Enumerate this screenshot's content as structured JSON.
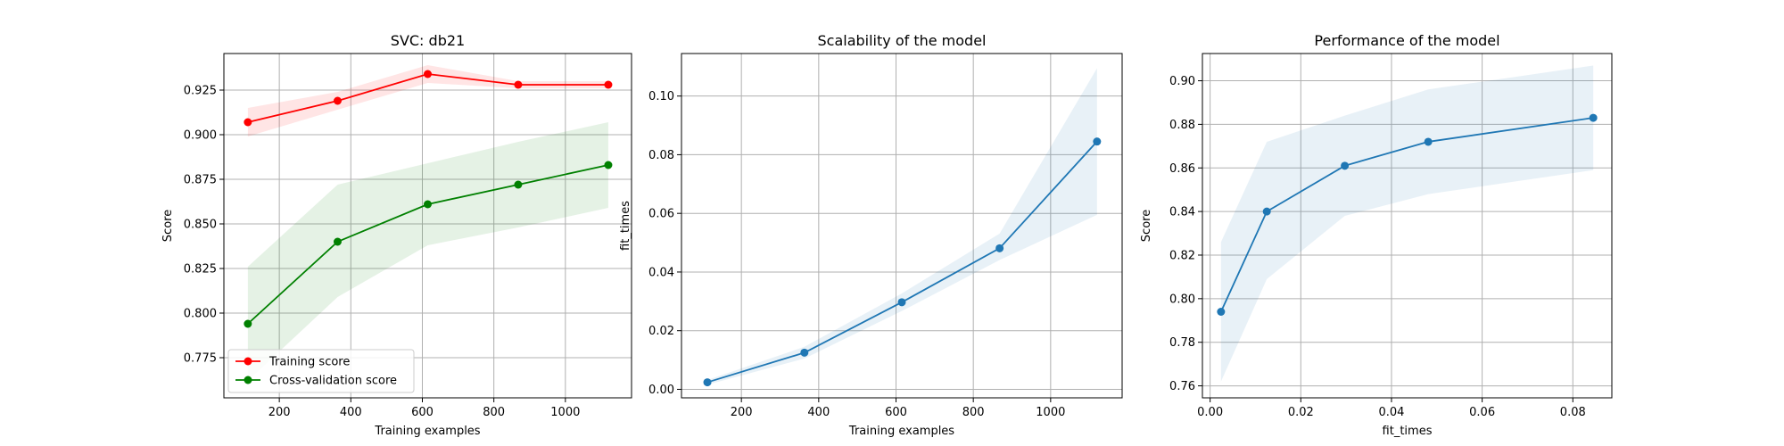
{
  "chart_data": [
    {
      "type": "line",
      "title": "SVC: db21",
      "xlabel": "Training examples",
      "ylabel": "Score",
      "xlim": [
        45,
        1185
      ],
      "ylim": [
        0.7525,
        0.9455
      ],
      "xticks": [
        200,
        400,
        600,
        800,
        1000
      ],
      "xtick_labels": [
        "200",
        "400",
        "600",
        "800",
        "1000"
      ],
      "yticks": [
        0.775,
        0.8,
        0.825,
        0.85,
        0.875,
        0.9,
        0.925
      ],
      "ytick_labels": [
        "0.775",
        "0.800",
        "0.825",
        "0.850",
        "0.875",
        "0.900",
        "0.925"
      ],
      "grid": true,
      "legend": "lower-left",
      "x": [
        112,
        363,
        615,
        868,
        1120
      ],
      "series": [
        {
          "name": "Training score",
          "color": "#ff0000",
          "fill": "#ff0000",
          "values": [
            0.907,
            0.919,
            0.934,
            0.928,
            0.928
          ],
          "band_low": [
            0.899,
            0.914,
            0.929,
            0.926,
            0.926
          ],
          "band_high": [
            0.915,
            0.924,
            0.939,
            0.93,
            0.93
          ]
        },
        {
          "name": "Cross-validation score",
          "color": "#008000",
          "fill": "#008000",
          "values": [
            0.794,
            0.84,
            0.861,
            0.872,
            0.883
          ],
          "band_low": [
            0.762,
            0.809,
            0.838,
            0.848,
            0.859
          ],
          "band_high": [
            0.826,
            0.872,
            0.884,
            0.896,
            0.907
          ]
        }
      ]
    },
    {
      "type": "line",
      "title": "Scalability of the model",
      "xlabel": "Training examples",
      "ylabel": "fit_times",
      "xlim": [
        45,
        1185
      ],
      "ylim": [
        -0.0029,
        0.1145
      ],
      "xticks": [
        200,
        400,
        600,
        800,
        1000
      ],
      "xtick_labels": [
        "200",
        "400",
        "600",
        "800",
        "1000"
      ],
      "yticks": [
        0.0,
        0.02,
        0.04,
        0.06,
        0.08,
        0.1
      ],
      "ytick_labels": [
        "0.00",
        "0.02",
        "0.04",
        "0.06",
        "0.08",
        "0.10"
      ],
      "grid": true,
      "x": [
        112,
        363,
        615,
        868,
        1120
      ],
      "series": [
        {
          "name": "",
          "color": "#1f77b4",
          "fill": "#1f77b4",
          "values": [
            0.0024,
            0.0125,
            0.0297,
            0.0481,
            0.0845
          ],
          "band_low": [
            0.0016,
            0.0105,
            0.0267,
            0.0441,
            0.0595
          ],
          "band_high": [
            0.0032,
            0.0145,
            0.0327,
            0.0531,
            0.1095
          ]
        }
      ]
    },
    {
      "type": "line",
      "title": "Performance of the model",
      "xlabel": "fit_times",
      "ylabel": "Score",
      "xlim": [
        -0.0017,
        0.0886
      ],
      "ylim": [
        0.7545,
        0.9125
      ],
      "xticks": [
        0.0,
        0.02,
        0.04,
        0.06,
        0.08
      ],
      "xtick_labels": [
        "0.00",
        "0.02",
        "0.04",
        "0.06",
        "0.08"
      ],
      "yticks": [
        0.76,
        0.78,
        0.8,
        0.82,
        0.84,
        0.86,
        0.88,
        0.9
      ],
      "ytick_labels": [
        "0.76",
        "0.78",
        "0.80",
        "0.82",
        "0.84",
        "0.86",
        "0.88",
        "0.90"
      ],
      "grid": true,
      "x": [
        0.0024,
        0.0125,
        0.0297,
        0.0481,
        0.0845
      ],
      "series": [
        {
          "name": "",
          "color": "#1f77b4",
          "fill": "#1f77b4",
          "values": [
            0.794,
            0.84,
            0.861,
            0.872,
            0.883
          ],
          "band_low": [
            0.762,
            0.809,
            0.838,
            0.848,
            0.859
          ],
          "band_high": [
            0.826,
            0.872,
            0.884,
            0.896,
            0.907
          ]
        }
      ]
    }
  ]
}
